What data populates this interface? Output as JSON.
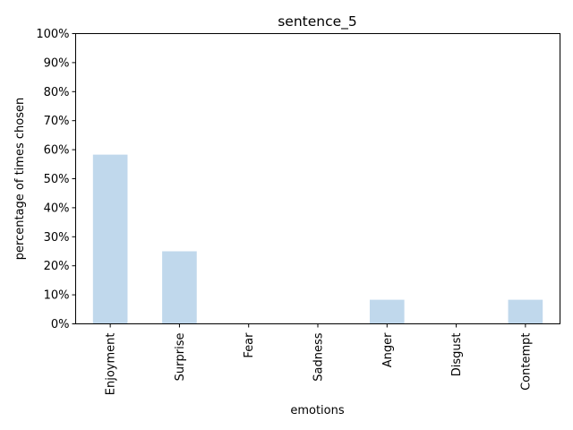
{
  "chart_data": {
    "type": "bar",
    "title": "sentence_5",
    "xlabel": "emotions",
    "ylabel": "percentage of times chosen",
    "categories": [
      "Enjoyment",
      "Surprise",
      "Fear",
      "Sadness",
      "Anger",
      "Disgust",
      "Contempt"
    ],
    "values": [
      58.3,
      25.0,
      0,
      0,
      8.3,
      0,
      8.3
    ],
    "ylim": [
      0,
      100
    ],
    "yticks": [
      "0%",
      "10%",
      "20%",
      "30%",
      "40%",
      "50%",
      "60%",
      "70%",
      "80%",
      "90%",
      "100%"
    ],
    "grid": false,
    "bar_color": "#c0d8ec"
  }
}
